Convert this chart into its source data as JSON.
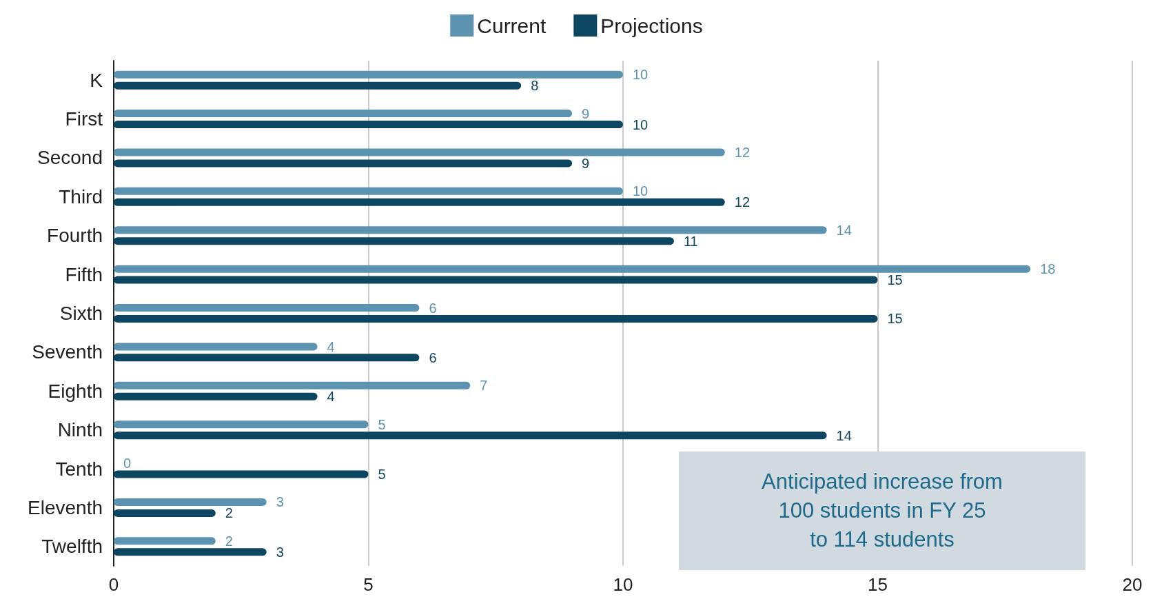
{
  "chart_data": {
    "type": "bar",
    "orientation": "horizontal",
    "categories": [
      "K",
      "First",
      "Second",
      "Third",
      "Fourth",
      "Fifth",
      "Sixth",
      "Seventh",
      "Eighth",
      "Ninth",
      "Tenth",
      "Eleventh",
      "Twelfth"
    ],
    "series": [
      {
        "name": "Current",
        "color": "#5b93b0",
        "values": [
          10,
          9,
          12,
          10,
          14,
          18,
          6,
          4,
          7,
          5,
          0,
          3,
          2
        ]
      },
      {
        "name": "Projections",
        "color": "#0d4660",
        "values": [
          8,
          10,
          9,
          12,
          11,
          15,
          15,
          6,
          4,
          14,
          5,
          2,
          3
        ]
      }
    ],
    "xlim": [
      0,
      20
    ],
    "xticks": [
      0,
      5,
      10,
      15,
      20
    ],
    "grid": "x",
    "legend": "top",
    "data_labels": true,
    "annotations": [
      "Anticipated increase from\n100 students in FY 25\nto 114 students"
    ]
  }
}
